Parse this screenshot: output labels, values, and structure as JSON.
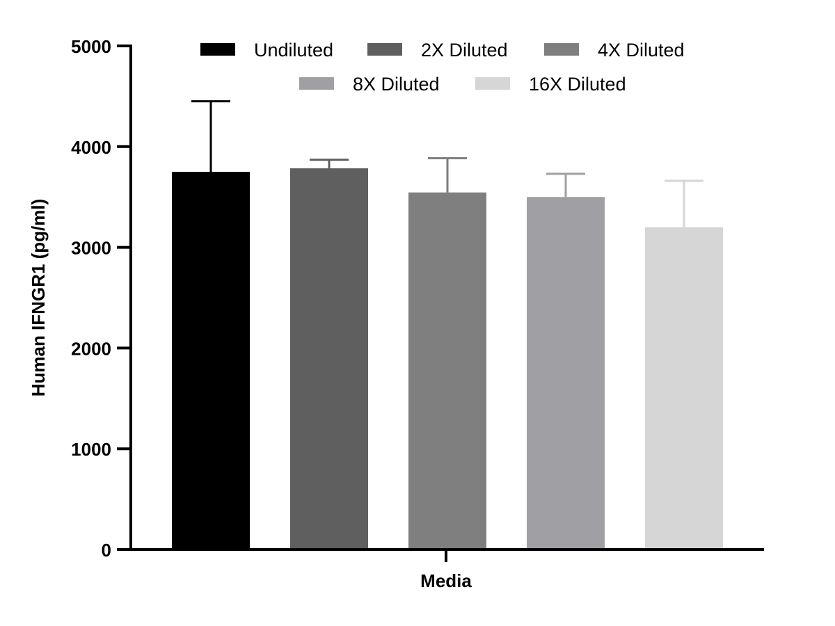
{
  "chart_data": {
    "type": "bar",
    "categories": [
      "Media"
    ],
    "series": [
      {
        "name": "Undiluted",
        "values": [
          3750
        ],
        "error": [
          700
        ],
        "color": "#000000",
        "error_color": "#000000"
      },
      {
        "name": "2X Diluted",
        "values": [
          3785
        ],
        "error": [
          85
        ],
        "color": "#5f5f5f",
        "error_color": "#5f5f5f"
      },
      {
        "name": "4X Diluted",
        "values": [
          3545
        ],
        "error": [
          340
        ],
        "color": "#7f7f7f",
        "error_color": "#7f7f7f"
      },
      {
        "name": "8X Diluted",
        "values": [
          3500
        ],
        "error": [
          230
        ],
        "color": "#a0a0a4",
        "error_color": "#a0a0a4"
      },
      {
        "name": "16X Diluted",
        "values": [
          3200
        ],
        "error": [
          460
        ],
        "color": "#d6d6d6",
        "error_color": "#d6d6d6"
      }
    ],
    "xlabel": "Media",
    "ylabel": "Human IFNGR1 (pg/ml)",
    "ylim": [
      0,
      5000
    ],
    "yticks": [
      0,
      1000,
      2000,
      3000,
      4000,
      5000
    ],
    "grid": false,
    "legend_position": "top-center"
  }
}
